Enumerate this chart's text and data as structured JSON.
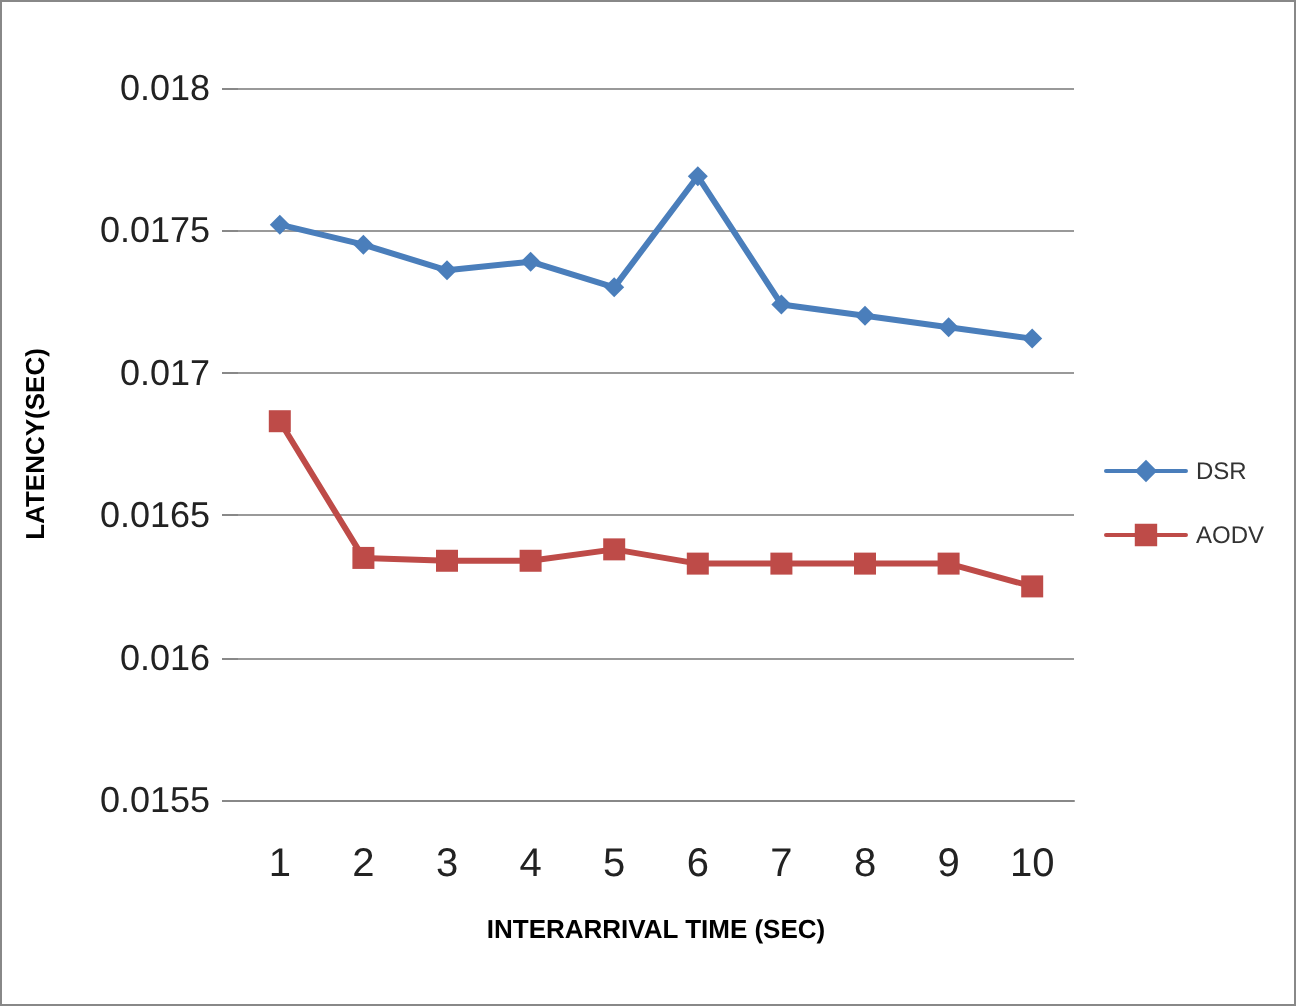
{
  "chart_data": {
    "type": "line",
    "xlabel": "INTERARRIVAL TIME (SEC)",
    "ylabel": "LATENCY(SEC)",
    "categories": [
      "1",
      "2",
      "3",
      "4",
      "5",
      "6",
      "7",
      "8",
      "9",
      "10"
    ],
    "series": [
      {
        "name": "DSR",
        "color": "#4a7ebb",
        "marker": "diamond",
        "values": [
          0.01752,
          0.01745,
          0.01736,
          0.01739,
          0.0173,
          0.01769,
          0.01724,
          0.0172,
          0.01716,
          0.01712
        ]
      },
      {
        "name": "AODV",
        "color": "#be4b48",
        "marker": "square",
        "values": [
          0.01683,
          0.01635,
          0.01634,
          0.01634,
          0.01638,
          0.01633,
          0.01633,
          0.01633,
          0.01633,
          0.01625
        ]
      }
    ],
    "ylim": [
      0.0155,
      0.018
    ],
    "yticks": [
      0.0155,
      0.016,
      0.0165,
      0.017,
      0.0175,
      0.018
    ],
    "grid": "y",
    "legend": "right",
    "line_style": "solid"
  }
}
